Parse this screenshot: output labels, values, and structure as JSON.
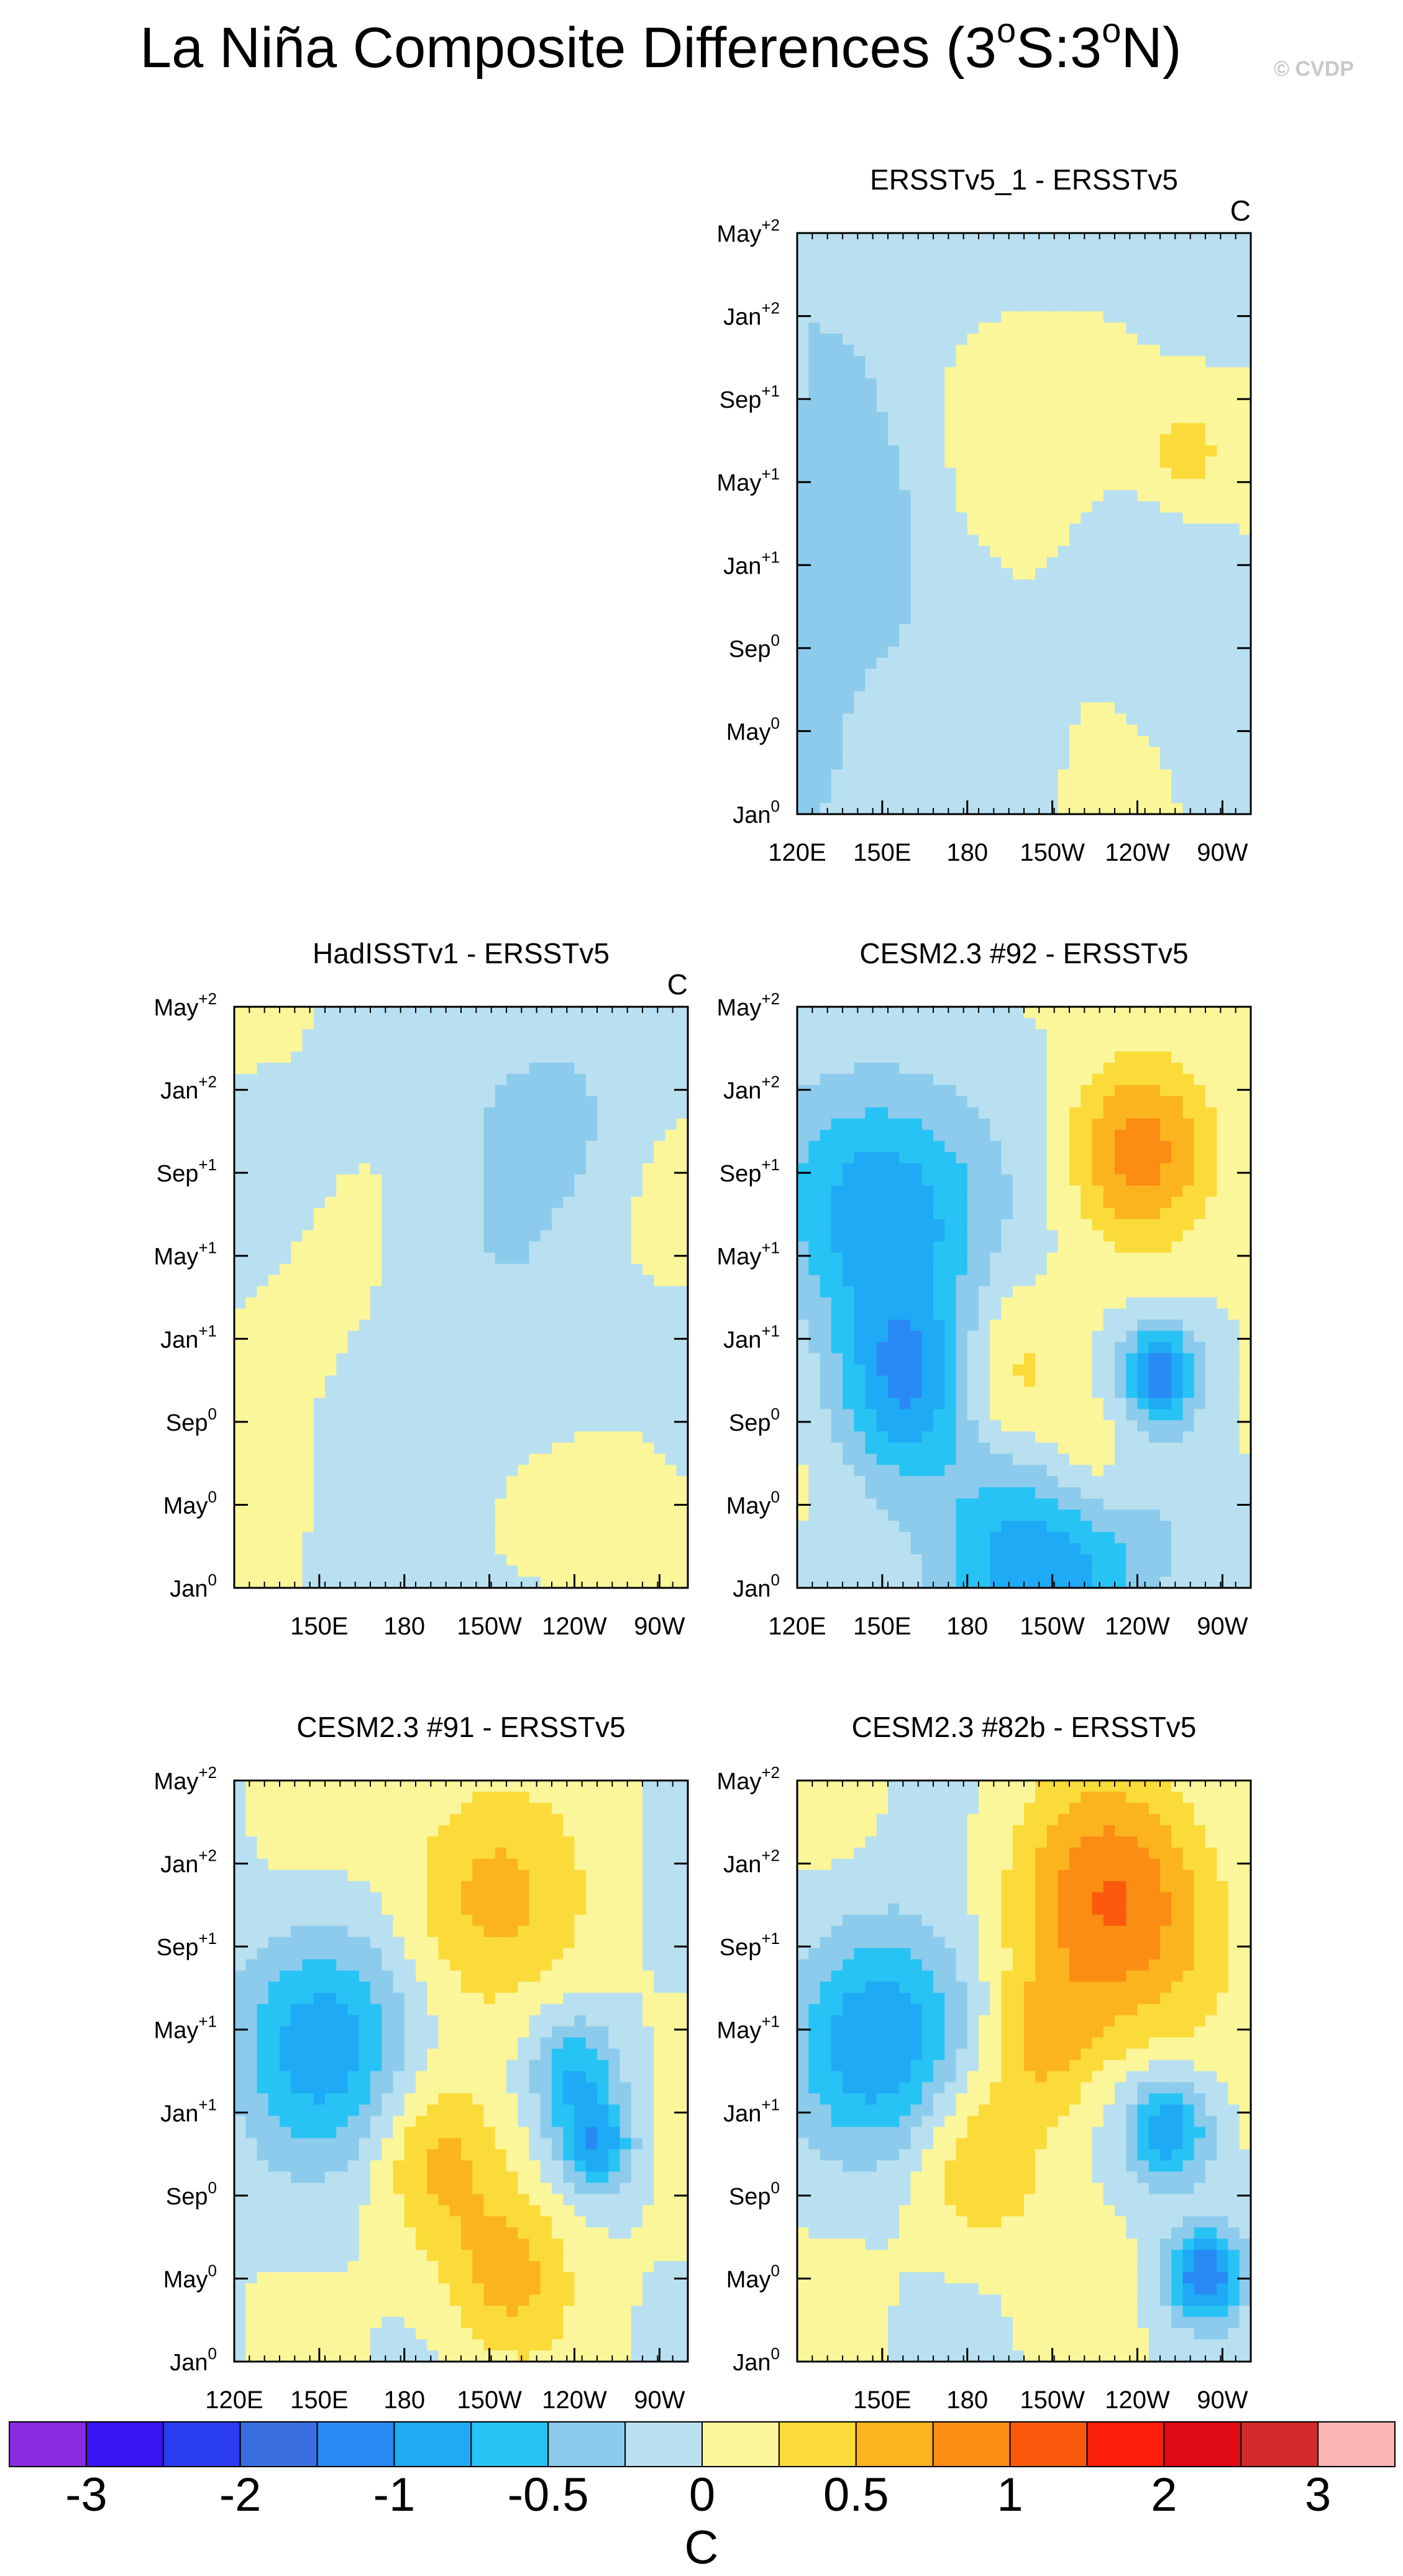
{
  "page": {
    "title_main": "La Niña Composite Differences (3",
    "title_sup1": "o",
    "title_mid": "S:3",
    "title_sup2": "o",
    "title_end": "N)",
    "watermark": "© CVDP"
  },
  "colorbar": {
    "unit": "C",
    "levels": [
      "-3",
      "-2",
      "-1",
      "-0.5",
      "0",
      "0.5",
      "1",
      "2",
      "3"
    ],
    "colors": [
      "#8a2be2",
      "#3a14f5",
      "#2a3cf0",
      "#3a6ee0",
      "#2a8af5",
      "#1eaaf5",
      "#28c3f5",
      "#8ccbeb",
      "#b9e0f0",
      "#fbf69a",
      "#fbdb3a",
      "#fbb41e",
      "#fb8c14",
      "#fb5a0c",
      "#fb1e0a",
      "#e00a14",
      "#d22a2a",
      "#fbb4b4"
    ]
  },
  "chart_data": [
    {
      "type": "heatmap",
      "title": "ERSST v5_1 - ERSSTv5",
      "title_text": "ERSSTv5_1 - ERSSTv5",
      "unit_label": "C",
      "x_ticks": [
        "120E",
        "150E",
        "180",
        "150W",
        "120W",
        "90W"
      ],
      "y_ticks": [
        [
          "Jan",
          "0"
        ],
        [
          "May",
          "0"
        ],
        [
          "Sep",
          "0"
        ],
        [
          "Jan",
          "+1"
        ],
        [
          "May",
          "+1"
        ],
        [
          "Sep",
          "+1"
        ],
        [
          "Jan",
          "+2"
        ],
        [
          "May",
          "+2"
        ]
      ],
      "xlim": [
        "120E",
        "80W"
      ],
      "ylim": [
        "Jan0",
        "May+2"
      ],
      "features": [
        {
          "x": 0.1,
          "y": 0.05,
          "r": 0.35,
          "v": -0.25
        },
        {
          "x": 0.75,
          "y": 0.05,
          "r": 0.35,
          "v": -0.35
        },
        {
          "x": 0.1,
          "y": 0.55,
          "r": 0.4,
          "v": -0.3
        },
        {
          "x": 0.85,
          "y": 0.65,
          "r": 0.25,
          "v": -0.25
        },
        {
          "x": 0.05,
          "y": 0.95,
          "r": 0.3,
          "v": -0.25
        },
        {
          "x": 0.45,
          "y": 0.3,
          "r": 0.25,
          "v": 0.2
        },
        {
          "x": 0.72,
          "y": 0.22,
          "r": 0.35,
          "v": 0.25
        },
        {
          "x": 0.85,
          "y": 0.38,
          "r": 0.12,
          "v": 0.3
        }
      ]
    },
    {
      "type": "heatmap",
      "title_text": "HadISSTv1 - ERSSTv5",
      "unit_label": "C",
      "x_ticks": [
        "150E",
        "180",
        "150W",
        "120W",
        "90W"
      ],
      "y_ticks": [
        [
          "Jan",
          "0"
        ],
        [
          "May",
          "0"
        ],
        [
          "Sep",
          "0"
        ],
        [
          "Jan",
          "+1"
        ],
        [
          "May",
          "+1"
        ],
        [
          "Sep",
          "+1"
        ],
        [
          "Jan",
          "+2"
        ],
        [
          "May",
          "+2"
        ]
      ],
      "features": [
        {
          "x": 0.5,
          "y": 0.5,
          "r": 0.45,
          "v": -0.2
        },
        {
          "x": 0.2,
          "y": 0.5,
          "r": 0.25,
          "v": 0.15
        },
        {
          "x": 0.85,
          "y": 0.85,
          "r": 0.15,
          "v": 0.3
        },
        {
          "x": 0.7,
          "y": 0.18,
          "r": 0.2,
          "v": -0.3
        }
      ]
    },
    {
      "type": "heatmap",
      "title_text": "CESM2.3 #92 - ERSSTv5",
      "unit_label": "",
      "x_ticks": [
        "120E",
        "150E",
        "180",
        "150W",
        "120W",
        "90W"
      ],
      "y_ticks": [
        [
          "Jan",
          "0"
        ],
        [
          "May",
          "0"
        ],
        [
          "Sep",
          "0"
        ],
        [
          "Jan",
          "+1"
        ],
        [
          "May",
          "+1"
        ],
        [
          "Sep",
          "+1"
        ],
        [
          "Jan",
          "+2"
        ],
        [
          "May",
          "+2"
        ]
      ],
      "features": [
        {
          "x": 0.2,
          "y": 0.35,
          "r": 0.28,
          "v": -1.0
        },
        {
          "x": 0.25,
          "y": 0.65,
          "r": 0.2,
          "v": -0.9
        },
        {
          "x": 0.55,
          "y": 0.95,
          "r": 0.3,
          "v": -1.0
        },
        {
          "x": 0.8,
          "y": 0.63,
          "r": 0.1,
          "v": -1.1
        },
        {
          "x": 0.45,
          "y": 0.65,
          "r": 0.2,
          "v": 0.5
        },
        {
          "x": 0.75,
          "y": 0.25,
          "r": 0.2,
          "v": 0.8
        },
        {
          "x": 0.65,
          "y": 0.8,
          "r": 0.15,
          "v": 0.5
        }
      ]
    },
    {
      "type": "heatmap",
      "title_text": "CESM2.3 #91 - ERSSTv5",
      "unit_label": "",
      "x_ticks": [
        "120E",
        "150E",
        "180",
        "150W",
        "120W",
        "90W"
      ],
      "y_ticks": [
        [
          "Jan",
          "0"
        ],
        [
          "May",
          "0"
        ],
        [
          "Sep",
          "0"
        ],
        [
          "Jan",
          "+1"
        ],
        [
          "May",
          "+1"
        ],
        [
          "Sep",
          "+1"
        ],
        [
          "Jan",
          "+2"
        ],
        [
          "May",
          "+2"
        ]
      ],
      "features": [
        {
          "x": 0.2,
          "y": 0.45,
          "r": 0.25,
          "v": -0.9
        },
        {
          "x": 0.8,
          "y": 0.63,
          "r": 0.1,
          "v": -0.9
        },
        {
          "x": 0.75,
          "y": 0.5,
          "r": 0.12,
          "v": -0.7
        },
        {
          "x": 0.55,
          "y": 0.2,
          "r": 0.25,
          "v": 0.6
        },
        {
          "x": 0.45,
          "y": 0.65,
          "r": 0.18,
          "v": 0.5
        },
        {
          "x": 0.6,
          "y": 0.85,
          "r": 0.18,
          "v": 0.6
        }
      ]
    },
    {
      "type": "heatmap",
      "title_text": "CESM2.3 #82b - ERSSTv5",
      "unit_label": "",
      "x_ticks": [
        "150E",
        "180",
        "150W",
        "120W",
        "90W"
      ],
      "y_ticks": [
        [
          "Jan",
          "0"
        ],
        [
          "May",
          "0"
        ],
        [
          "Sep",
          "0"
        ],
        [
          "Jan",
          "+1"
        ],
        [
          "May",
          "+1"
        ],
        [
          "Sep",
          "+1"
        ],
        [
          "Jan",
          "+2"
        ],
        [
          "May",
          "+2"
        ]
      ],
      "features": [
        {
          "x": 0.2,
          "y": 0.45,
          "r": 0.25,
          "v": -1.0
        },
        {
          "x": 0.82,
          "y": 0.6,
          "r": 0.12,
          "v": -1.0
        },
        {
          "x": 0.9,
          "y": 0.85,
          "r": 0.1,
          "v": -1.2
        },
        {
          "x": 0.7,
          "y": 0.22,
          "r": 0.28,
          "v": 1.0
        },
        {
          "x": 0.4,
          "y": 0.65,
          "r": 0.2,
          "v": 0.5
        },
        {
          "x": 0.55,
          "y": 0.45,
          "r": 0.15,
          "v": 0.5
        }
      ]
    }
  ]
}
